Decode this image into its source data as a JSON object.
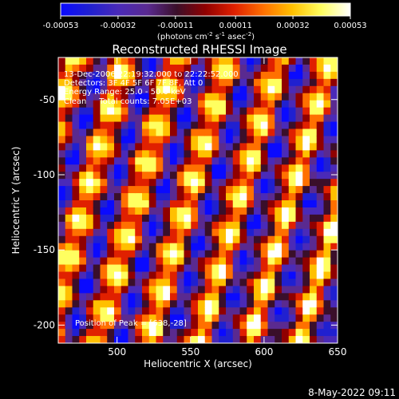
{
  "chart_data": {
    "type": "heatmap",
    "title": "Reconstructed RHESSI Image",
    "xlabel": "Heliocentric X (arcsec)",
    "ylabel": "Heliocentric Y (arcsec)",
    "xlim": [
      460,
      650
    ],
    "ylim": [
      -212,
      -22
    ],
    "x_ticks": [
      500,
      550,
      600,
      650
    ],
    "y_ticks": [
      -50,
      -100,
      -150,
      -200
    ],
    "colorbar": {
      "min": -0.00053,
      "max": 0.00053,
      "tick_values": [
        -0.00053,
        -0.00032,
        -0.00011,
        0.00011,
        0.00032,
        0.00053
      ],
      "tick_labels": [
        "-0.00053",
        "-0.00032",
        "-0.00011",
        "0.00011",
        "0.00032",
        "0.00053"
      ],
      "colors": [
        "#0a0aff",
        "#2020d0",
        "#4a2ab8",
        "#5a2a90",
        "#3a0f2a",
        "#900000",
        "#e02000",
        "#ff7000",
        "#ffc000",
        "#ffff60",
        "#ffffff"
      ],
      "label_main": "(photons cm",
      "label_sup1": "-2",
      "label_mid": " s",
      "label_sup2": "-1",
      "label_end": " asec",
      "label_sup3": "-2",
      "label_close": ")"
    },
    "info_lines": [
      "13-Dec-2006 22:19:32.000 to 22:22:52.000",
      "Detectors: 3F 4F 5F 6F 7F 8F, Att 0",
      "Energy Range: 25.0 - 50.0 keV",
      "Clean     Total counts: 7.05E+03"
    ],
    "peak_label": "Position of Peak = [638,-28]",
    "peak": [
      638,
      -28
    ],
    "grid": false
  },
  "footer": {
    "date": "8-May-2022 09:11"
  }
}
